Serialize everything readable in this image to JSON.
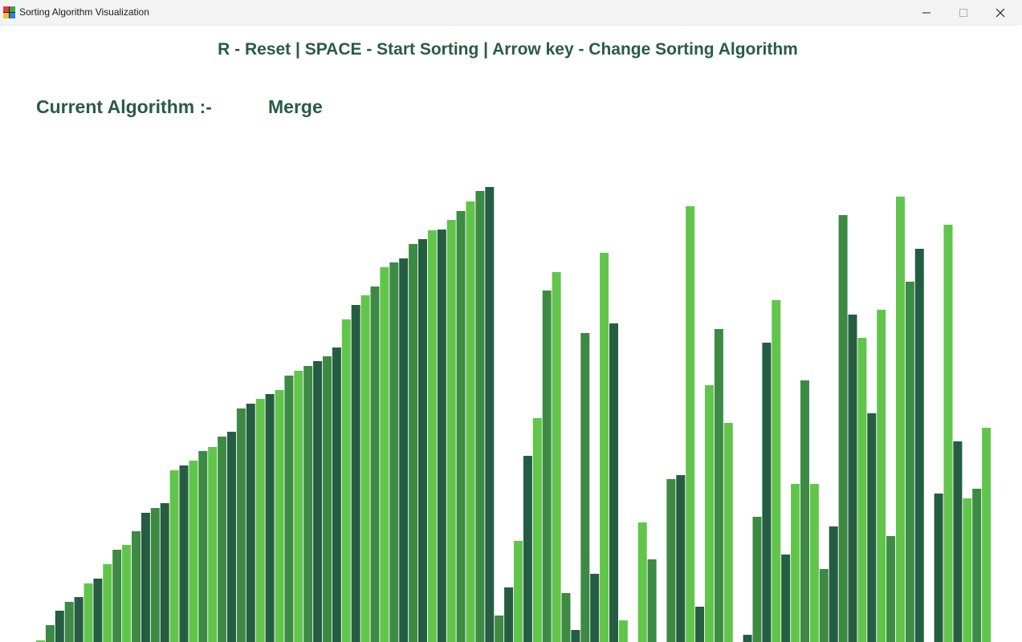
{
  "window": {
    "title": "Sorting Algorithm Visualization",
    "min_icon": "minimize-icon",
    "max_icon": "maximize-icon",
    "close_icon": "close-icon",
    "app_icon_colors": [
      "#e53935",
      "#43a047",
      "#fbc02d",
      "#1e88e5"
    ]
  },
  "header": {
    "instructions": "R - Reset | SPACE - Start Sorting | Arrow key - Change Sorting Algorithm",
    "algorithm_label": "Current Algorithm :-",
    "algorithm_name": "Merge"
  },
  "colors": {
    "text": "#285c44",
    "bar_light": "#62c54b",
    "bar_mid": "#3d8a45",
    "bar_dark": "#255d42"
  },
  "chart_data": {
    "type": "bar",
    "ylim": [
      0,
      570
    ],
    "values": [
      2,
      21,
      39,
      50,
      56,
      73,
      79,
      97,
      115,
      121,
      138,
      161,
      167,
      173,
      214,
      220,
      226,
      238,
      243,
      256,
      262,
      291,
      297,
      303,
      309,
      314,
      332,
      338,
      344,
      350,
      356,
      367,
      402,
      420,
      432,
      443,
      467,
      473,
      478,
      496,
      502,
      513,
      514,
      526,
      537,
      549,
      562,
      567,
      33,
      68,
      126,
      232,
      279,
      438,
      461,
      61,
      15,
      385,
      85,
      485,
      397,
      27,
      0,
      149,
      103,
      0,
      203,
      208,
      543,
      44,
      320,
      390,
      273,
      0,
      9,
      156,
      373,
      426,
      109,
      197,
      326,
      197,
      91,
      144,
      532,
      408,
      379,
      285,
      414,
      132,
      555,
      449,
      490,
      0,
      185,
      520,
      250,
      179,
      191,
      267
    ]
  }
}
